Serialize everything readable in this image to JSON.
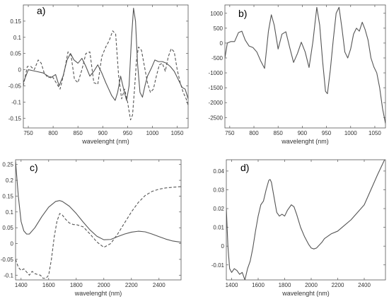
{
  "figure": {
    "background": "#ffffff",
    "line_color": "#555555"
  },
  "chart_data": [
    {
      "type": "line",
      "panel_label": "a)",
      "xlabel": "wavelenght (nm)",
      "ylabel": "",
      "xlim": [
        740,
        1072
      ],
      "ylim": [
        -0.18,
        0.2
      ],
      "xticks": [
        750,
        800,
        850,
        900,
        950,
        1000,
        1050
      ],
      "yticks": [
        -0.15,
        -0.1,
        -0.05,
        0,
        0.05,
        0.1,
        0.15
      ],
      "ytick_labels": [
        "-0.15",
        "-0.1",
        "-0.05",
        "0",
        "0.05",
        "0.1",
        "0.15"
      ],
      "series": [
        {
          "style": "solid",
          "color": "#555555",
          "x": [
            740,
            750,
            765,
            780,
            795,
            805,
            812,
            820,
            828,
            835,
            842,
            850,
            858,
            866,
            874,
            882,
            890,
            898,
            906,
            912,
            918,
            925,
            930,
            936,
            942,
            948,
            953,
            958,
            962,
            966,
            970,
            975,
            980,
            985,
            990,
            998,
            1005,
            1012,
            1020,
            1028,
            1036,
            1044,
            1052,
            1060,
            1066,
            1072
          ],
          "y": [
            -0.04,
            0.0,
            -0.005,
            -0.01,
            -0.025,
            -0.015,
            -0.05,
            -0.02,
            0.03,
            0.05,
            0.03,
            0.02,
            0.035,
            0.01,
            -0.02,
            -0.005,
            0.015,
            -0.01,
            -0.04,
            -0.06,
            -0.08,
            -0.095,
            -0.07,
            -0.02,
            -0.06,
            -0.095,
            -0.05,
            0.1,
            0.19,
            0.15,
            0.02,
            -0.07,
            -0.085,
            -0.05,
            -0.02,
            0.005,
            0.03,
            0.025,
            0.025,
            0.02,
            0.01,
            -0.005,
            -0.03,
            -0.055,
            -0.06,
            -0.09
          ]
        },
        {
          "style": "dashed",
          "color": "#555555",
          "x": [
            740,
            748,
            755,
            762,
            770,
            776,
            782,
            790,
            798,
            806,
            814,
            822,
            830,
            836,
            843,
            850,
            858,
            866,
            874,
            882,
            890,
            898,
            906,
            913,
            920,
            926,
            932,
            938,
            944,
            950,
            956,
            960,
            964,
            968,
            972,
            978,
            984,
            990,
            996,
            1002,
            1008,
            1014,
            1020,
            1026,
            1032,
            1038,
            1044,
            1050,
            1056,
            1062,
            1068,
            1072
          ],
          "y": [
            -0.05,
            0.01,
            0.01,
            0.0,
            0.03,
            0.02,
            -0.01,
            -0.025,
            -0.02,
            -0.04,
            -0.06,
            -0.01,
            0.055,
            0.045,
            -0.03,
            -0.04,
            0.0,
            0.05,
            0.055,
            -0.04,
            -0.045,
            0.04,
            0.07,
            0.09,
            0.12,
            0.11,
            -0.02,
            -0.09,
            -0.06,
            -0.1,
            -0.155,
            -0.14,
            -0.06,
            0.03,
            0.07,
            0.06,
            0.01,
            -0.04,
            -0.07,
            -0.06,
            -0.02,
            0.015,
            0.02,
            -0.005,
            0.04,
            0.065,
            0.055,
            0.0,
            -0.04,
            -0.07,
            -0.09,
            -0.11
          ]
        }
      ]
    },
    {
      "type": "line",
      "panel_label": "b)",
      "xlabel": "wavelenght (nm)",
      "ylabel": "",
      "xlim": [
        740,
        1072
      ],
      "ylim": [
        -2850,
        1280
      ],
      "xticks": [
        750,
        800,
        850,
        900,
        950,
        1000,
        1050
      ],
      "yticks": [
        -2500,
        -2000,
        -1500,
        -1000,
        -500,
        0,
        500,
        1000
      ],
      "ytick_labels": [
        "-2500",
        "-2000",
        "-1500",
        "-1000",
        "-500",
        "0",
        "500",
        "1000"
      ],
      "series": [
        {
          "style": "solid",
          "color": "#555555",
          "x": [
            740,
            745,
            752,
            760,
            768,
            775,
            782,
            790,
            798,
            806,
            814,
            822,
            830,
            836,
            842,
            850,
            858,
            866,
            874,
            882,
            890,
            898,
            906,
            914,
            922,
            930,
            936,
            942,
            948,
            952,
            958,
            964,
            970,
            976,
            982,
            988,
            994,
            1000,
            1006,
            1012,
            1018,
            1024,
            1030,
            1036,
            1042,
            1048,
            1054,
            1060,
            1066,
            1072
          ],
          "y": [
            -500,
            0,
            50,
            50,
            350,
            400,
            100,
            -100,
            -150,
            -300,
            -600,
            -850,
            400,
            950,
            600,
            -200,
            300,
            380,
            -150,
            -650,
            -350,
            30,
            -300,
            -820,
            50,
            1200,
            600,
            -600,
            -1620,
            -1700,
            -900,
            100,
            1000,
            1200,
            500,
            -300,
            -500,
            -200,
            300,
            500,
            400,
            700,
            450,
            100,
            -500,
            -800,
            -1000,
            -1500,
            -2200,
            -2700
          ]
        }
      ]
    },
    {
      "type": "line",
      "panel_label": "c)",
      "xlabel": "wavelenght (nm)",
      "ylabel": "",
      "xlim": [
        1360,
        2560
      ],
      "ylim": [
        -0.115,
        0.265
      ],
      "xticks": [
        1400,
        1600,
        1800,
        2000,
        2200,
        2400
      ],
      "yticks": [
        -0.1,
        -0.05,
        0,
        0.05,
        0.1,
        0.15,
        0.2,
        0.25
      ],
      "ytick_labels": [
        "-0.1",
        "-0.05",
        "0",
        "0.05",
        "0.1",
        "0.15",
        "0.2",
        "0.25"
      ],
      "series": [
        {
          "style": "solid",
          "color": "#555555",
          "x": [
            1360,
            1380,
            1400,
            1420,
            1440,
            1460,
            1500,
            1550,
            1600,
            1650,
            1680,
            1700,
            1750,
            1800,
            1850,
            1900,
            1950,
            2000,
            2050,
            2100,
            2150,
            2200,
            2250,
            2300,
            2350,
            2400,
            2450,
            2500,
            2560
          ],
          "y": [
            0.26,
            0.15,
            0.07,
            0.04,
            0.03,
            0.03,
            0.05,
            0.085,
            0.115,
            0.133,
            0.136,
            0.133,
            0.118,
            0.095,
            0.068,
            0.043,
            0.023,
            0.012,
            0.013,
            0.022,
            0.03,
            0.036,
            0.039,
            0.037,
            0.03,
            0.022,
            0.014,
            0.008,
            0.004
          ]
        },
        {
          "style": "dashed",
          "color": "#555555",
          "x": [
            1360,
            1380,
            1400,
            1420,
            1440,
            1460,
            1480,
            1500,
            1520,
            1540,
            1560,
            1580,
            1600,
            1620,
            1640,
            1660,
            1680,
            1700,
            1720,
            1750,
            1780,
            1800,
            1850,
            1900,
            1950,
            2000,
            2050,
            2100,
            2150,
            2200,
            2250,
            2300,
            2350,
            2400,
            2450,
            2500,
            2560
          ],
          "y": [
            -0.05,
            -0.075,
            -0.085,
            -0.08,
            -0.09,
            -0.1,
            -0.088,
            -0.095,
            -0.098,
            -0.1,
            -0.11,
            -0.11,
            -0.1,
            -0.05,
            0.02,
            0.07,
            0.095,
            0.09,
            0.078,
            0.065,
            0.06,
            0.06,
            0.053,
            0.03,
            0.005,
            -0.012,
            0.0,
            0.03,
            0.065,
            0.1,
            0.13,
            0.152,
            0.165,
            0.172,
            0.176,
            0.178,
            0.18
          ]
        }
      ]
    },
    {
      "type": "line",
      "panel_label": "d)",
      "xlabel": "wavelenght (nm)",
      "ylabel": "",
      "xlim": [
        1360,
        2560
      ],
      "ylim": [
        -0.018,
        0.046
      ],
      "xticks": [
        1400,
        1600,
        1800,
        2000,
        2200,
        2400
      ],
      "yticks": [
        -0.01,
        0,
        0.01,
        0.02,
        0.03,
        0.04
      ],
      "ytick_labels": [
        "-0.01",
        "0",
        "0.01",
        "0.02",
        "0.03",
        "0.04"
      ],
      "series": [
        {
          "style": "solid",
          "color": "#555555",
          "x": [
            1360,
            1372,
            1385,
            1400,
            1420,
            1440,
            1460,
            1480,
            1500,
            1520,
            1540,
            1560,
            1580,
            1600,
            1620,
            1640,
            1660,
            1680,
            1690,
            1700,
            1720,
            1740,
            1760,
            1780,
            1800,
            1820,
            1850,
            1870,
            1890,
            1920,
            1950,
            1980,
            2000,
            2020,
            2040,
            2060,
            2080,
            2100,
            2150,
            2200,
            2250,
            2300,
            2350,
            2400,
            2450,
            2500,
            2560
          ],
          "y": [
            0.02,
            0.0,
            -0.012,
            -0.014,
            -0.012,
            -0.013,
            -0.015,
            -0.014,
            -0.018,
            -0.012,
            -0.008,
            -0.001,
            0.008,
            0.016,
            0.022,
            0.024,
            0.03,
            0.035,
            0.0355,
            0.034,
            0.026,
            0.018,
            0.016,
            0.017,
            0.016,
            0.019,
            0.022,
            0.021,
            0.017,
            0.01,
            0.005,
            0.001,
            -0.001,
            -0.0015,
            -0.001,
            0.0005,
            0.002,
            0.004,
            0.0065,
            0.008,
            0.011,
            0.014,
            0.018,
            0.022,
            0.03,
            0.038,
            0.047
          ]
        }
      ]
    }
  ]
}
